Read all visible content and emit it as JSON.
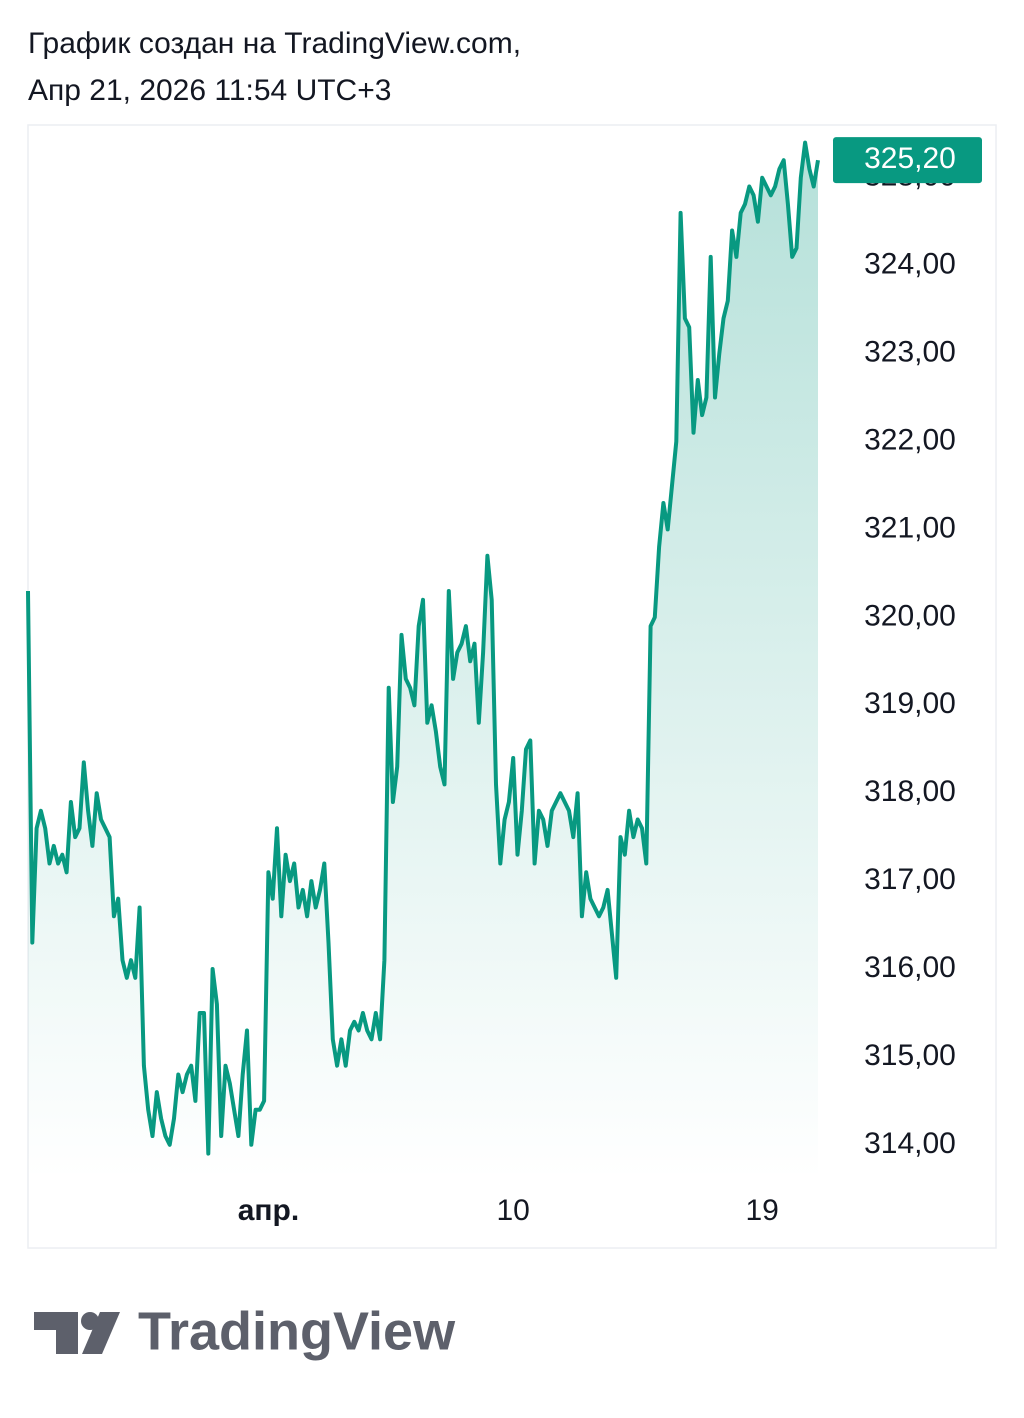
{
  "header": {
    "line1": "График создан на TradingView.com,",
    "line2": "Апр 21, 2026 11:54 UTC+3"
  },
  "footer": {
    "brand": "TradingView"
  },
  "chart_data": {
    "type": "area",
    "color": "#089981",
    "categories": [
      null,
      null,
      null,
      null,
      null,
      null,
      null,
      null,
      null,
      null,
      null,
      null,
      null,
      null,
      null,
      null,
      null,
      null,
      null,
      null,
      null,
      null,
      null,
      null,
      null,
      null,
      null,
      null,
      null,
      null,
      null,
      null,
      null,
      null,
      null,
      null,
      null,
      null,
      null,
      null,
      null,
      null,
      null,
      null,
      null,
      null,
      null,
      null,
      null,
      null,
      null,
      null,
      null,
      null,
      null,
      null,
      "апр.",
      null,
      null,
      null,
      null,
      null,
      null,
      null,
      null,
      null,
      null,
      null,
      null,
      null,
      null,
      null,
      null,
      null,
      null,
      null,
      null,
      null,
      null,
      null,
      null,
      null,
      null,
      null,
      null,
      null,
      null,
      null,
      null,
      null,
      null,
      null,
      null,
      null,
      null,
      null,
      null,
      null,
      null,
      null,
      null,
      null,
      null,
      null,
      null,
      null,
      null,
      null,
      null,
      null,
      null,
      null,
      null,
      "10",
      null,
      null,
      null,
      null,
      null,
      null,
      null,
      null,
      null,
      null,
      null,
      null,
      null,
      null,
      null,
      null,
      null,
      null,
      null,
      null,
      null,
      null,
      null,
      null,
      null,
      null,
      null,
      null,
      null,
      null,
      null,
      null,
      null,
      null,
      null,
      null,
      null,
      null,
      null,
      null,
      null,
      null,
      null,
      null,
      null,
      null,
      null,
      null,
      null,
      null,
      null,
      null,
      null,
      null,
      null,
      null,
      null,
      "19",
      null,
      null,
      null,
      null,
      null,
      null,
      null,
      null,
      null,
      null,
      null,
      null,
      null
    ],
    "values": [
      320.3,
      316.3,
      317.6,
      317.8,
      317.6,
      317.2,
      317.4,
      317.2,
      317.3,
      317.1,
      317.9,
      317.5,
      317.6,
      318.35,
      317.8,
      317.4,
      318.0,
      317.7,
      317.6,
      317.5,
      316.6,
      316.8,
      316.1,
      315.9,
      316.1,
      315.9,
      316.7,
      314.9,
      314.4,
      314.1,
      314.6,
      314.3,
      314.1,
      314.0,
      314.3,
      314.8,
      314.6,
      314.8,
      314.9,
      314.5,
      315.5,
      315.5,
      313.9,
      316.0,
      315.6,
      314.1,
      314.9,
      314.7,
      314.4,
      314.1,
      314.8,
      315.3,
      314.0,
      314.4,
      314.4,
      314.5,
      317.1,
      316.8,
      317.6,
      316.6,
      317.3,
      317.0,
      317.2,
      316.7,
      316.9,
      316.6,
      317.0,
      316.7,
      316.9,
      317.2,
      316.3,
      315.2,
      314.9,
      315.2,
      314.9,
      315.3,
      315.4,
      315.3,
      315.5,
      315.3,
      315.2,
      315.5,
      315.2,
      316.1,
      319.2,
      317.9,
      318.3,
      319.8,
      319.3,
      319.2,
      319.0,
      319.9,
      320.2,
      318.8,
      319.0,
      318.7,
      318.3,
      318.1,
      320.3,
      319.3,
      319.6,
      319.7,
      319.9,
      319.5,
      319.7,
      318.8,
      319.6,
      320.7,
      320.2,
      318.1,
      317.2,
      317.7,
      317.9,
      318.4,
      317.3,
      317.8,
      318.5,
      318.6,
      317.2,
      317.8,
      317.7,
      317.4,
      317.8,
      317.9,
      318.0,
      317.9,
      317.8,
      317.5,
      318.0,
      316.6,
      317.1,
      316.8,
      316.7,
      316.6,
      316.7,
      316.9,
      316.4,
      315.9,
      317.5,
      317.3,
      317.8,
      317.5,
      317.7,
      317.6,
      317.2,
      319.9,
      320.0,
      320.8,
      321.3,
      321.0,
      321.5,
      322.0,
      324.6,
      323.4,
      323.3,
      322.1,
      322.7,
      322.3,
      322.5,
      324.1,
      322.5,
      323.0,
      323.4,
      323.6,
      324.4,
      324.1,
      324.6,
      324.7,
      324.9,
      324.8,
      324.5,
      325.0,
      324.9,
      324.8,
      324.9,
      325.1,
      325.2,
      324.7,
      324.1,
      324.2,
      325.0,
      325.4,
      325.1,
      324.9,
      325.2
    ],
    "price_label": {
      "value": 325.2,
      "label": "325,20"
    },
    "ylim": [
      313.6,
      325.6
    ],
    "yticks": [
      {
        "value": 314,
        "label": "314,00"
      },
      {
        "value": 315,
        "label": "315,00"
      },
      {
        "value": 316,
        "label": "316,00"
      },
      {
        "value": 317,
        "label": "317,00"
      },
      {
        "value": 318,
        "label": "318,00"
      },
      {
        "value": 319,
        "label": "319,00"
      },
      {
        "value": 320,
        "label": "320,00"
      },
      {
        "value": 321,
        "label": "321,00"
      },
      {
        "value": 322,
        "label": "322,00"
      },
      {
        "value": 323,
        "label": "323,00"
      },
      {
        "value": 324,
        "label": "324,00"
      },
      {
        "value": 325,
        "label": "325,00"
      }
    ],
    "grid": false
  }
}
